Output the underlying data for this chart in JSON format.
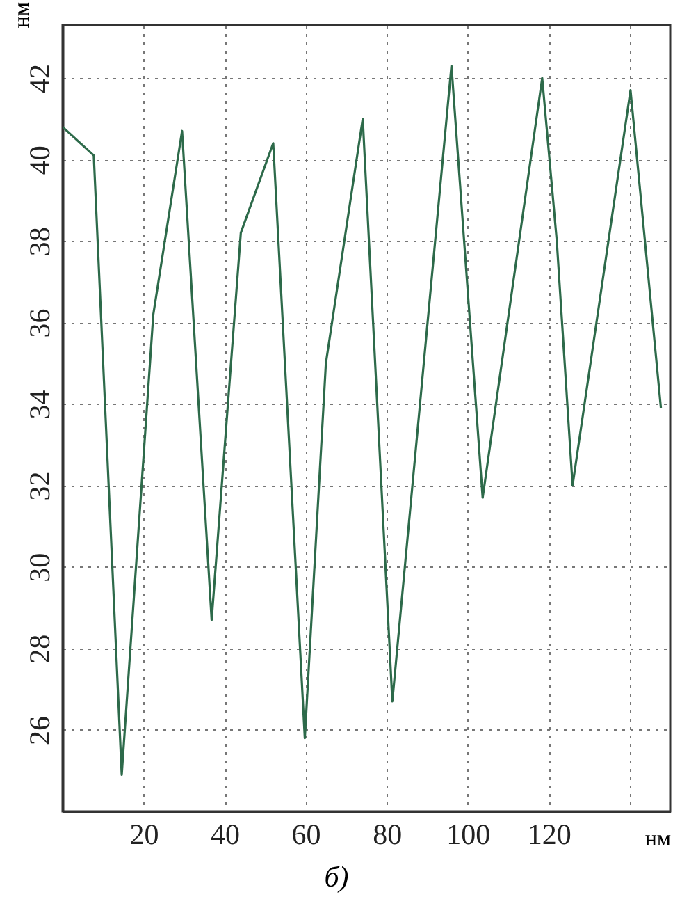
{
  "chart_data": {
    "type": "line",
    "xlabel": "нм",
    "ylabel": "нм",
    "annotations": [
      "б)"
    ],
    "x": [
      0,
      7.7,
      14.6,
      22.4,
      29.5,
      36.8,
      44,
      52,
      59.8,
      65,
      74.1,
      81.4,
      96,
      103.7,
      118.4,
      122,
      125.9,
      140.2,
      147.7
    ],
    "series": [
      {
        "color": "#2d6a4a",
        "values": [
          40.8,
          40.1,
          24.9,
          36.2,
          40.7,
          28.7,
          38.2,
          40.4,
          25.8,
          35,
          41,
          26.7,
          42.3,
          31.7,
          42,
          38,
          32,
          41.7,
          33.9
        ]
      }
    ],
    "xlim": [
      0,
      150
    ],
    "ylim": [
      24,
      43.3
    ],
    "xticks": [
      20,
      40,
      60,
      80,
      100,
      120,
      {
        "value": 140,
        "label": null
      }
    ],
    "yticks": [
      26,
      28,
      30,
      32,
      34,
      36,
      38,
      40,
      42
    ],
    "grid": true
  }
}
